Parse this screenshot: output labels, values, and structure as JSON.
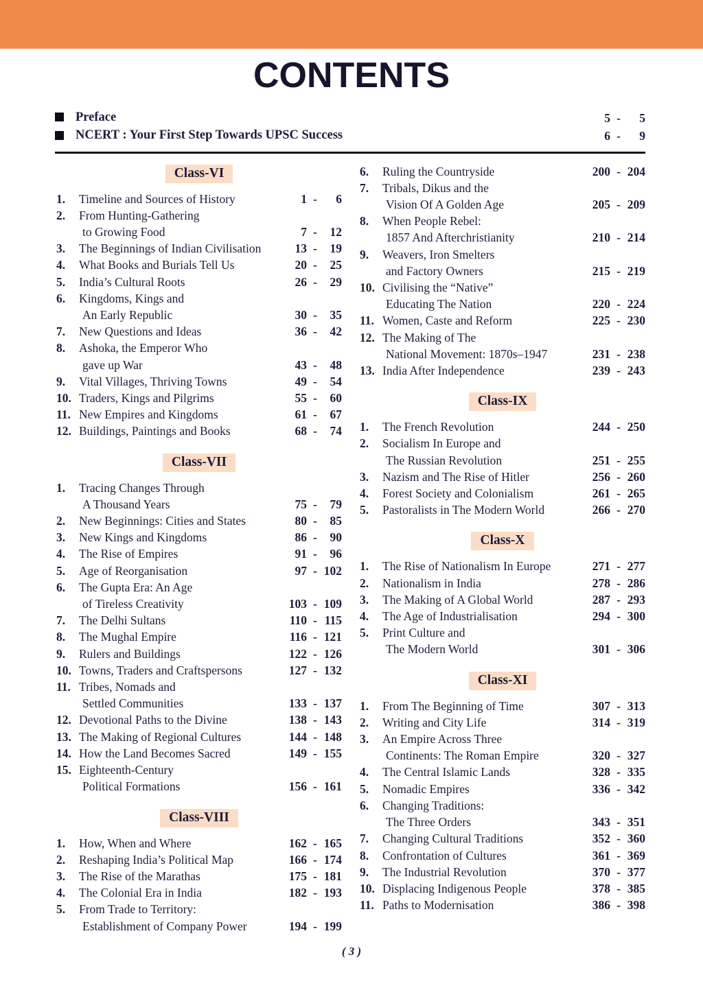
{
  "title": "CONTENTS",
  "range_separator": "-",
  "theme": {
    "header_bar_color": "#F0884C",
    "class_label_background": "#FBDCC6",
    "ink_color": "#1E1D3A"
  },
  "preface": [
    {
      "label": "Preface",
      "start": "5",
      "end": "5"
    },
    {
      "label": "NCERT : Your First Step Towards UPSC Success",
      "start": "6",
      "end": "9"
    }
  ],
  "columns": [
    {
      "blocks": [
        {
          "header": "Class-VI",
          "items": [
            {
              "num": "1.",
              "lines": [
                "Timeline and Sources of History"
              ],
              "start": "1",
              "end": "6"
            },
            {
              "num": "2.",
              "lines": [
                "From Hunting-Gathering",
                "to Growing Food"
              ],
              "start": "7",
              "end": "12"
            },
            {
              "num": "3.",
              "lines": [
                "The Beginnings of Indian Civilisation"
              ],
              "start": "13",
              "end": "19"
            },
            {
              "num": "4.",
              "lines": [
                "What Books and Burials Tell Us"
              ],
              "start": "20",
              "end": "25"
            },
            {
              "num": "5.",
              "lines": [
                "India’s Cultural Roots"
              ],
              "start": "26",
              "end": "29"
            },
            {
              "num": "6.",
              "lines": [
                "Kingdoms, Kings and",
                "An Early Republic"
              ],
              "start": "30",
              "end": "35"
            },
            {
              "num": "7.",
              "lines": [
                "New Questions and Ideas"
              ],
              "start": "36",
              "end": "42"
            },
            {
              "num": "8.",
              "lines": [
                "Ashoka, the Emperor Who",
                "gave up War"
              ],
              "start": "43",
              "end": "48"
            },
            {
              "num": "9.",
              "lines": [
                "Vital Villages, Thriving Towns"
              ],
              "start": "49",
              "end": "54"
            },
            {
              "num": "10.",
              "lines": [
                "Traders, Kings and Pilgrims"
              ],
              "start": "55",
              "end": "60"
            },
            {
              "num": "11.",
              "lines": [
                "New Empires and Kingdoms"
              ],
              "start": "61",
              "end": "67"
            },
            {
              "num": "12.",
              "lines": [
                "Buildings, Paintings and Books"
              ],
              "start": "68",
              "end": "74"
            }
          ]
        },
        {
          "header": "Class-VII",
          "items": [
            {
              "num": "1.",
              "lines": [
                "Tracing Changes Through",
                "A Thousand Years"
              ],
              "start": "75",
              "end": "79"
            },
            {
              "num": "2.",
              "lines": [
                "New Beginnings: Cities and States"
              ],
              "start": "80",
              "end": "85"
            },
            {
              "num": "3.",
              "lines": [
                "New Kings and Kingdoms"
              ],
              "start": "86",
              "end": "90"
            },
            {
              "num": "4.",
              "lines": [
                "The Rise of Empires"
              ],
              "start": "91",
              "end": "96"
            },
            {
              "num": "5.",
              "lines": [
                "Age of Reorganisation"
              ],
              "start": "97",
              "end": "102"
            },
            {
              "num": "6.",
              "lines": [
                "The Gupta Era: An Age",
                "of Tireless Creativity"
              ],
              "start": "103",
              "end": "109"
            },
            {
              "num": "7.",
              "lines": [
                "The Delhi Sultans"
              ],
              "start": "110",
              "end": "115"
            },
            {
              "num": "8.",
              "lines": [
                "The Mughal Empire"
              ],
              "start": "116",
              "end": "121"
            },
            {
              "num": "9.",
              "lines": [
                "Rulers and Buildings"
              ],
              "start": "122",
              "end": "126"
            },
            {
              "num": "10.",
              "lines": [
                "Towns, Traders and Craftspersons"
              ],
              "start": "127",
              "end": "132"
            },
            {
              "num": "11.",
              "lines": [
                "Tribes, Nomads and",
                "Settled Communities"
              ],
              "start": "133",
              "end": "137"
            },
            {
              "num": "12.",
              "lines": [
                "Devotional Paths to the Divine"
              ],
              "start": "138",
              "end": "143"
            },
            {
              "num": "13.",
              "lines": [
                "The Making of Regional Cultures"
              ],
              "start": "144",
              "end": "148"
            },
            {
              "num": "14.",
              "lines": [
                "How the Land Becomes Sacred"
              ],
              "start": "149",
              "end": "155"
            },
            {
              "num": "15.",
              "lines": [
                "Eighteenth-Century",
                "Political Formations"
              ],
              "start": "156",
              "end": "161"
            }
          ]
        },
        {
          "header": "Class-VIII",
          "items": [
            {
              "num": "1.",
              "lines": [
                "How, When and Where"
              ],
              "start": "162",
              "end": "165"
            },
            {
              "num": "2.",
              "lines": [
                "Reshaping India’s Political Map"
              ],
              "start": "166",
              "end": "174"
            },
            {
              "num": "3.",
              "lines": [
                "The Rise of the Marathas"
              ],
              "start": "175",
              "end": "181"
            },
            {
              "num": "4.",
              "lines": [
                "The Colonial Era in India"
              ],
              "start": "182",
              "end": "193"
            },
            {
              "num": "5.",
              "lines": [
                "From Trade to Territory:",
                "Establishment of Company Power"
              ],
              "start": "194",
              "end": "199"
            }
          ]
        }
      ]
    },
    {
      "blocks": [
        {
          "header": null,
          "items": [
            {
              "num": "6.",
              "lines": [
                "Ruling the Countryside"
              ],
              "start": "200",
              "end": "204"
            },
            {
              "num": "7.",
              "lines": [
                "Tribals, Dikus and the",
                "Vision Of A Golden Age"
              ],
              "start": "205",
              "end": "209"
            },
            {
              "num": "8.",
              "lines": [
                "When People Rebel:",
                "1857 And Afterchristianity"
              ],
              "start": "210",
              "end": "214"
            },
            {
              "num": "9.",
              "lines": [
                "Weavers, Iron Smelters",
                "and Factory Owners"
              ],
              "start": "215",
              "end": "219"
            },
            {
              "num": "10.",
              "lines": [
                "Civilising the “Native”",
                "Educating The Nation"
              ],
              "start": "220",
              "end": "224"
            },
            {
              "num": "11.",
              "lines": [
                "Women, Caste and Reform"
              ],
              "start": "225",
              "end": "230"
            },
            {
              "num": "12.",
              "lines": [
                "The Making of The",
                "National Movement: 1870s–1947"
              ],
              "start": "231",
              "end": "238"
            },
            {
              "num": "13.",
              "lines": [
                "India After Independence"
              ],
              "start": "239",
              "end": "243"
            }
          ]
        },
        {
          "header": "Class-IX",
          "items": [
            {
              "num": "1.",
              "lines": [
                "The French Revolution"
              ],
              "start": "244",
              "end": "250"
            },
            {
              "num": "2.",
              "lines": [
                "Socialism In Europe and",
                "The Russian Revolution"
              ],
              "start": "251",
              "end": "255"
            },
            {
              "num": "3.",
              "lines": [
                "Nazism and The Rise of Hitler"
              ],
              "start": "256",
              "end": "260"
            },
            {
              "num": "4.",
              "lines": [
                "Forest Society and Colonialism"
              ],
              "start": "261",
              "end": "265"
            },
            {
              "num": "5.",
              "lines": [
                "Pastoralists in The Modern World"
              ],
              "start": "266",
              "end": "270"
            }
          ]
        },
        {
          "header": "Class-X",
          "items": [
            {
              "num": "1.",
              "lines": [
                "The Rise of Nationalism In Europe"
              ],
              "start": "271",
              "end": "277"
            },
            {
              "num": "2.",
              "lines": [
                "Nationalism in India"
              ],
              "start": "278",
              "end": "286"
            },
            {
              "num": "3.",
              "lines": [
                "The Making of A Global World"
              ],
              "start": "287",
              "end": "293"
            },
            {
              "num": "4.",
              "lines": [
                "The Age of Industrialisation"
              ],
              "start": "294",
              "end": "300"
            },
            {
              "num": "5.",
              "lines": [
                "Print Culture and",
                "The Modern World"
              ],
              "start": "301",
              "end": "306"
            }
          ]
        },
        {
          "header": "Class-XI",
          "items": [
            {
              "num": "1.",
              "lines": [
                "From The Beginning of Time"
              ],
              "start": "307",
              "end": "313"
            },
            {
              "num": "2.",
              "lines": [
                "Writing and City Life"
              ],
              "start": "314",
              "end": "319"
            },
            {
              "num": "3.",
              "lines": [
                "An Empire Across Three",
                "Continents: The Roman Empire"
              ],
              "start": "320",
              "end": "327"
            },
            {
              "num": "4.",
              "lines": [
                "The Central Islamic Lands"
              ],
              "start": "328",
              "end": "335"
            },
            {
              "num": "5.",
              "lines": [
                "Nomadic Empires"
              ],
              "start": "336",
              "end": "342"
            },
            {
              "num": "6.",
              "lines": [
                "Changing Traditions:",
                "The Three Orders"
              ],
              "start": "343",
              "end": "351"
            },
            {
              "num": "7.",
              "lines": [
                "Changing Cultural Traditions"
              ],
              "start": "352",
              "end": "360"
            },
            {
              "num": "8.",
              "lines": [
                "Confrontation of Cultures"
              ],
              "start": "361",
              "end": "369"
            },
            {
              "num": "9.",
              "lines": [
                "The Industrial Revolution"
              ],
              "start": "370",
              "end": "377"
            },
            {
              "num": "10.",
              "lines": [
                "Displacing Indigenous People"
              ],
              "start": "378",
              "end": "385"
            },
            {
              "num": "11.",
              "lines": [
                "Paths to Modernisation"
              ],
              "start": "386",
              "end": "398"
            }
          ]
        }
      ]
    }
  ],
  "footer": {
    "page_number": "( 3 )"
  }
}
